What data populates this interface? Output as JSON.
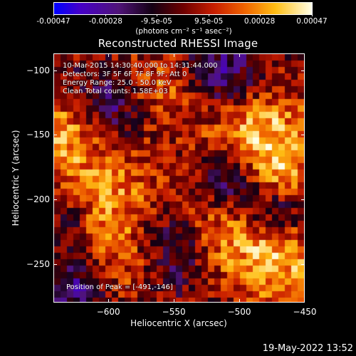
{
  "colorbar": {
    "ticks": [
      "-0.00047",
      "-0.00028",
      "-9.5e-05",
      "9.5e-05",
      "0.00028",
      "0.00047"
    ],
    "tick_values": [
      -0.00047,
      -0.00028,
      -9.5e-05,
      9.5e-05,
      0.00028,
      0.00047
    ],
    "range": [
      -0.00047,
      0.00047
    ],
    "units": "(photons cm⁻² s⁻¹ asec⁻²)"
  },
  "chart_data": {
    "type": "heatmap",
    "title": "Reconstructed RHESSI Image",
    "xlabel": "Heliocentric X (arcsec)",
    "ylabel": "Heliocentric Y (arcsec)",
    "xlim": [
      -642,
      -450
    ],
    "ylim": [
      -280,
      -87
    ],
    "x_ticks": [
      -600,
      -550,
      -500,
      -450
    ],
    "y_ticks": [
      -100,
      -150,
      -200,
      -250
    ],
    "grid": false,
    "colormap": "red-temperature (black-purple-blue to red-orange-yellow-white)",
    "annotations": [
      "10-Mar-2015 14:30:40.000 to 14:31:44.000",
      "Detectors: 3F 5F 6F 7F 8F 9F, Att 0",
      "Energy Range: 25.0 - 50.0 keV",
      "Clean    Total counts: 1.58E+03"
    ],
    "peak_text": "Position of Peak = [-491,-146]",
    "peak_position": [
      -491,
      -146
    ]
  },
  "footer": {
    "timestamp": "19-May-2022 13:52"
  }
}
